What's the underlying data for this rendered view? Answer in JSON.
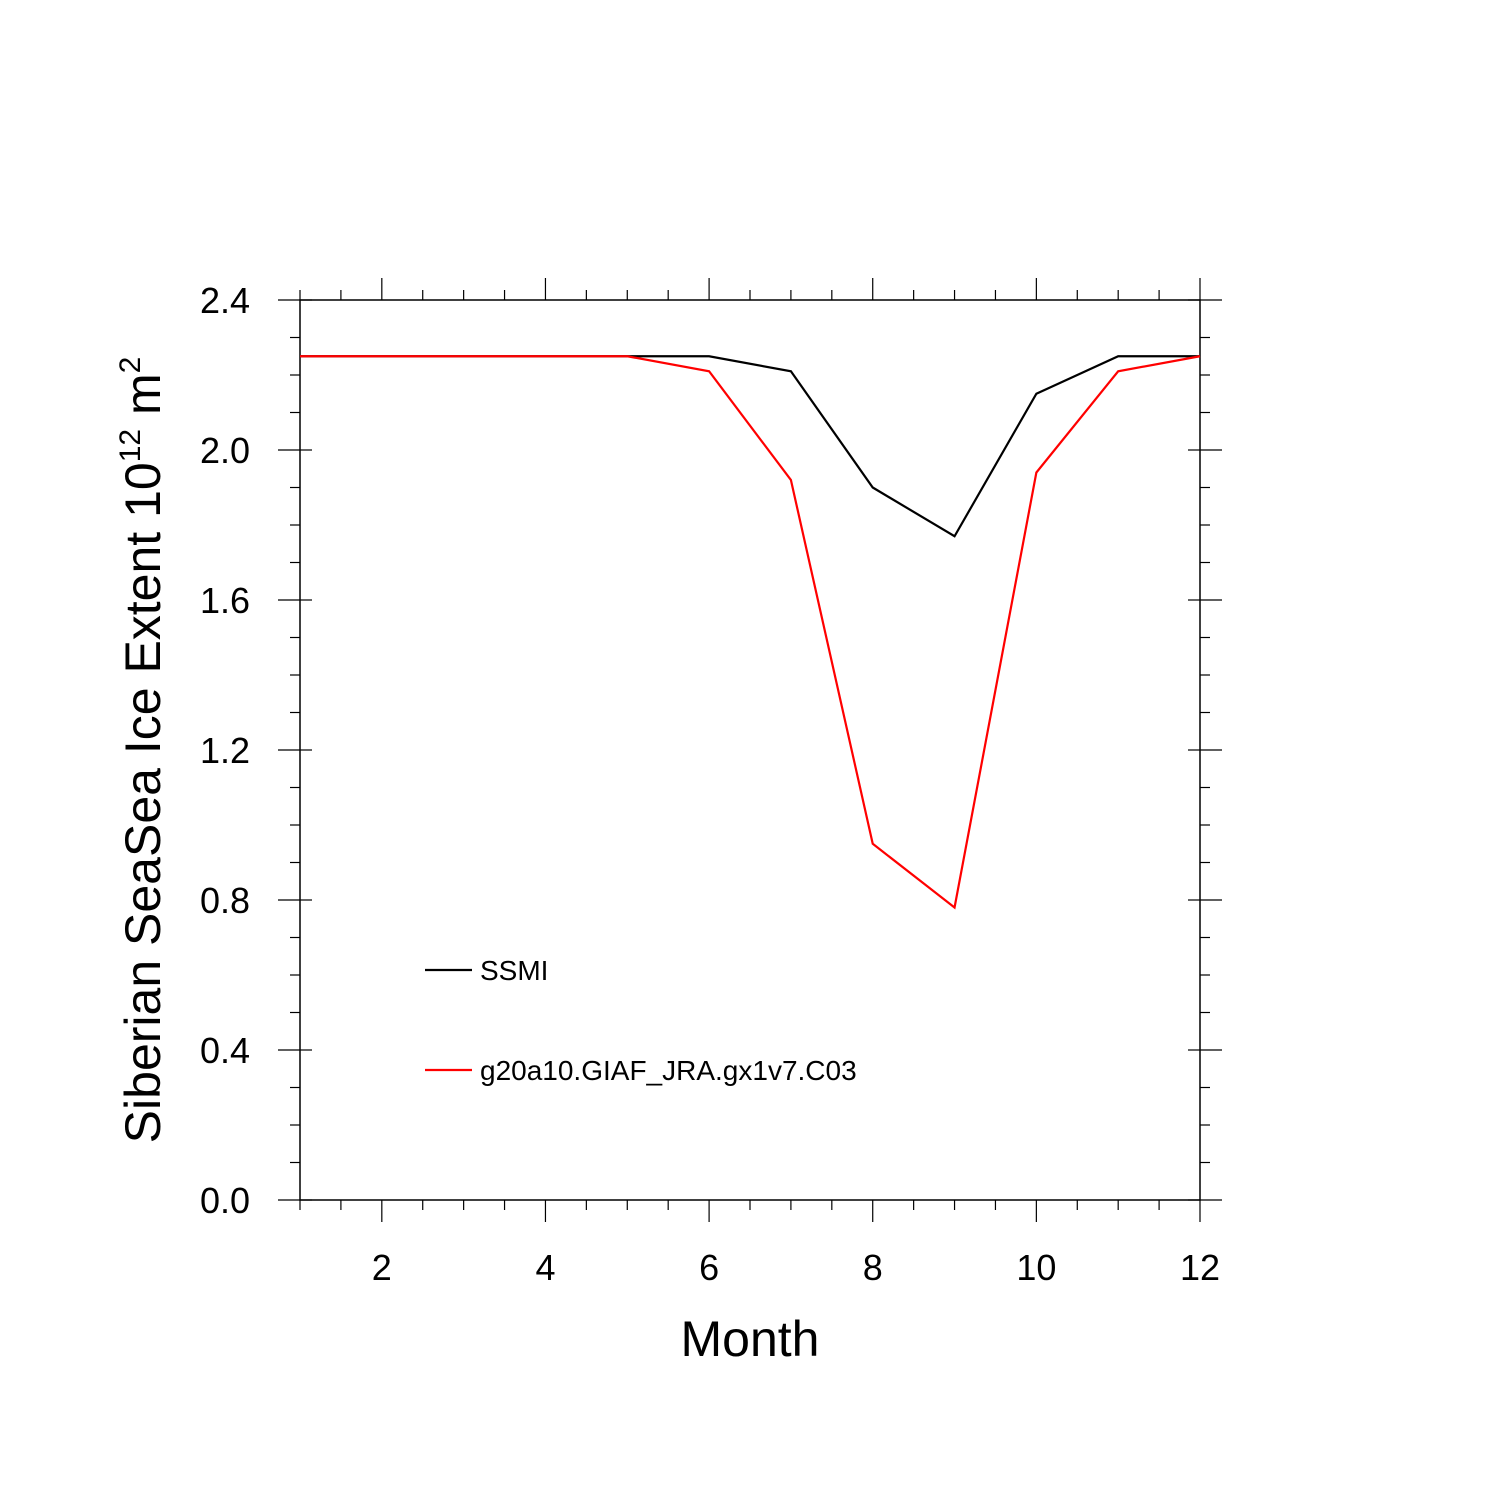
{
  "chart_data": {
    "type": "line",
    "title": "",
    "xlabel": "Month",
    "ylabel": {
      "prefix": "Siberian SeaSea Ice Extent 10",
      "superscript": "12",
      "suffix": " m",
      "suffix_superscript": "2"
    },
    "xlim": [
      1,
      12
    ],
    "ylim": [
      0.0,
      2.4
    ],
    "xticks": [
      2,
      4,
      6,
      8,
      10,
      12
    ],
    "xtick_labels": [
      "2",
      "4",
      "6",
      "8",
      "10",
      "12"
    ],
    "yticks": [
      0.0,
      0.4,
      0.8,
      1.2,
      1.6,
      2.0,
      2.4
    ],
    "ytick_labels": [
      "0.0",
      "0.4",
      "0.8",
      "1.2",
      "1.6",
      "2.0",
      "2.4"
    ],
    "grid": false,
    "legend_position": "lower-left",
    "x": [
      1,
      2,
      3,
      4,
      5,
      6,
      7,
      8,
      9,
      10,
      11,
      12
    ],
    "series": [
      {
        "name": "SSMI",
        "color": "#000000",
        "values": [
          2.25,
          2.25,
          2.25,
          2.25,
          2.25,
          2.25,
          2.21,
          1.9,
          1.77,
          2.15,
          2.25,
          2.25
        ]
      },
      {
        "name": "g20a10.GIAF_JRA.gx1v7.C03",
        "color": "#ff0000",
        "values": [
          2.25,
          2.25,
          2.25,
          2.25,
          2.25,
          2.21,
          1.92,
          0.95,
          0.78,
          1.94,
          2.21,
          2.25
        ]
      }
    ]
  }
}
